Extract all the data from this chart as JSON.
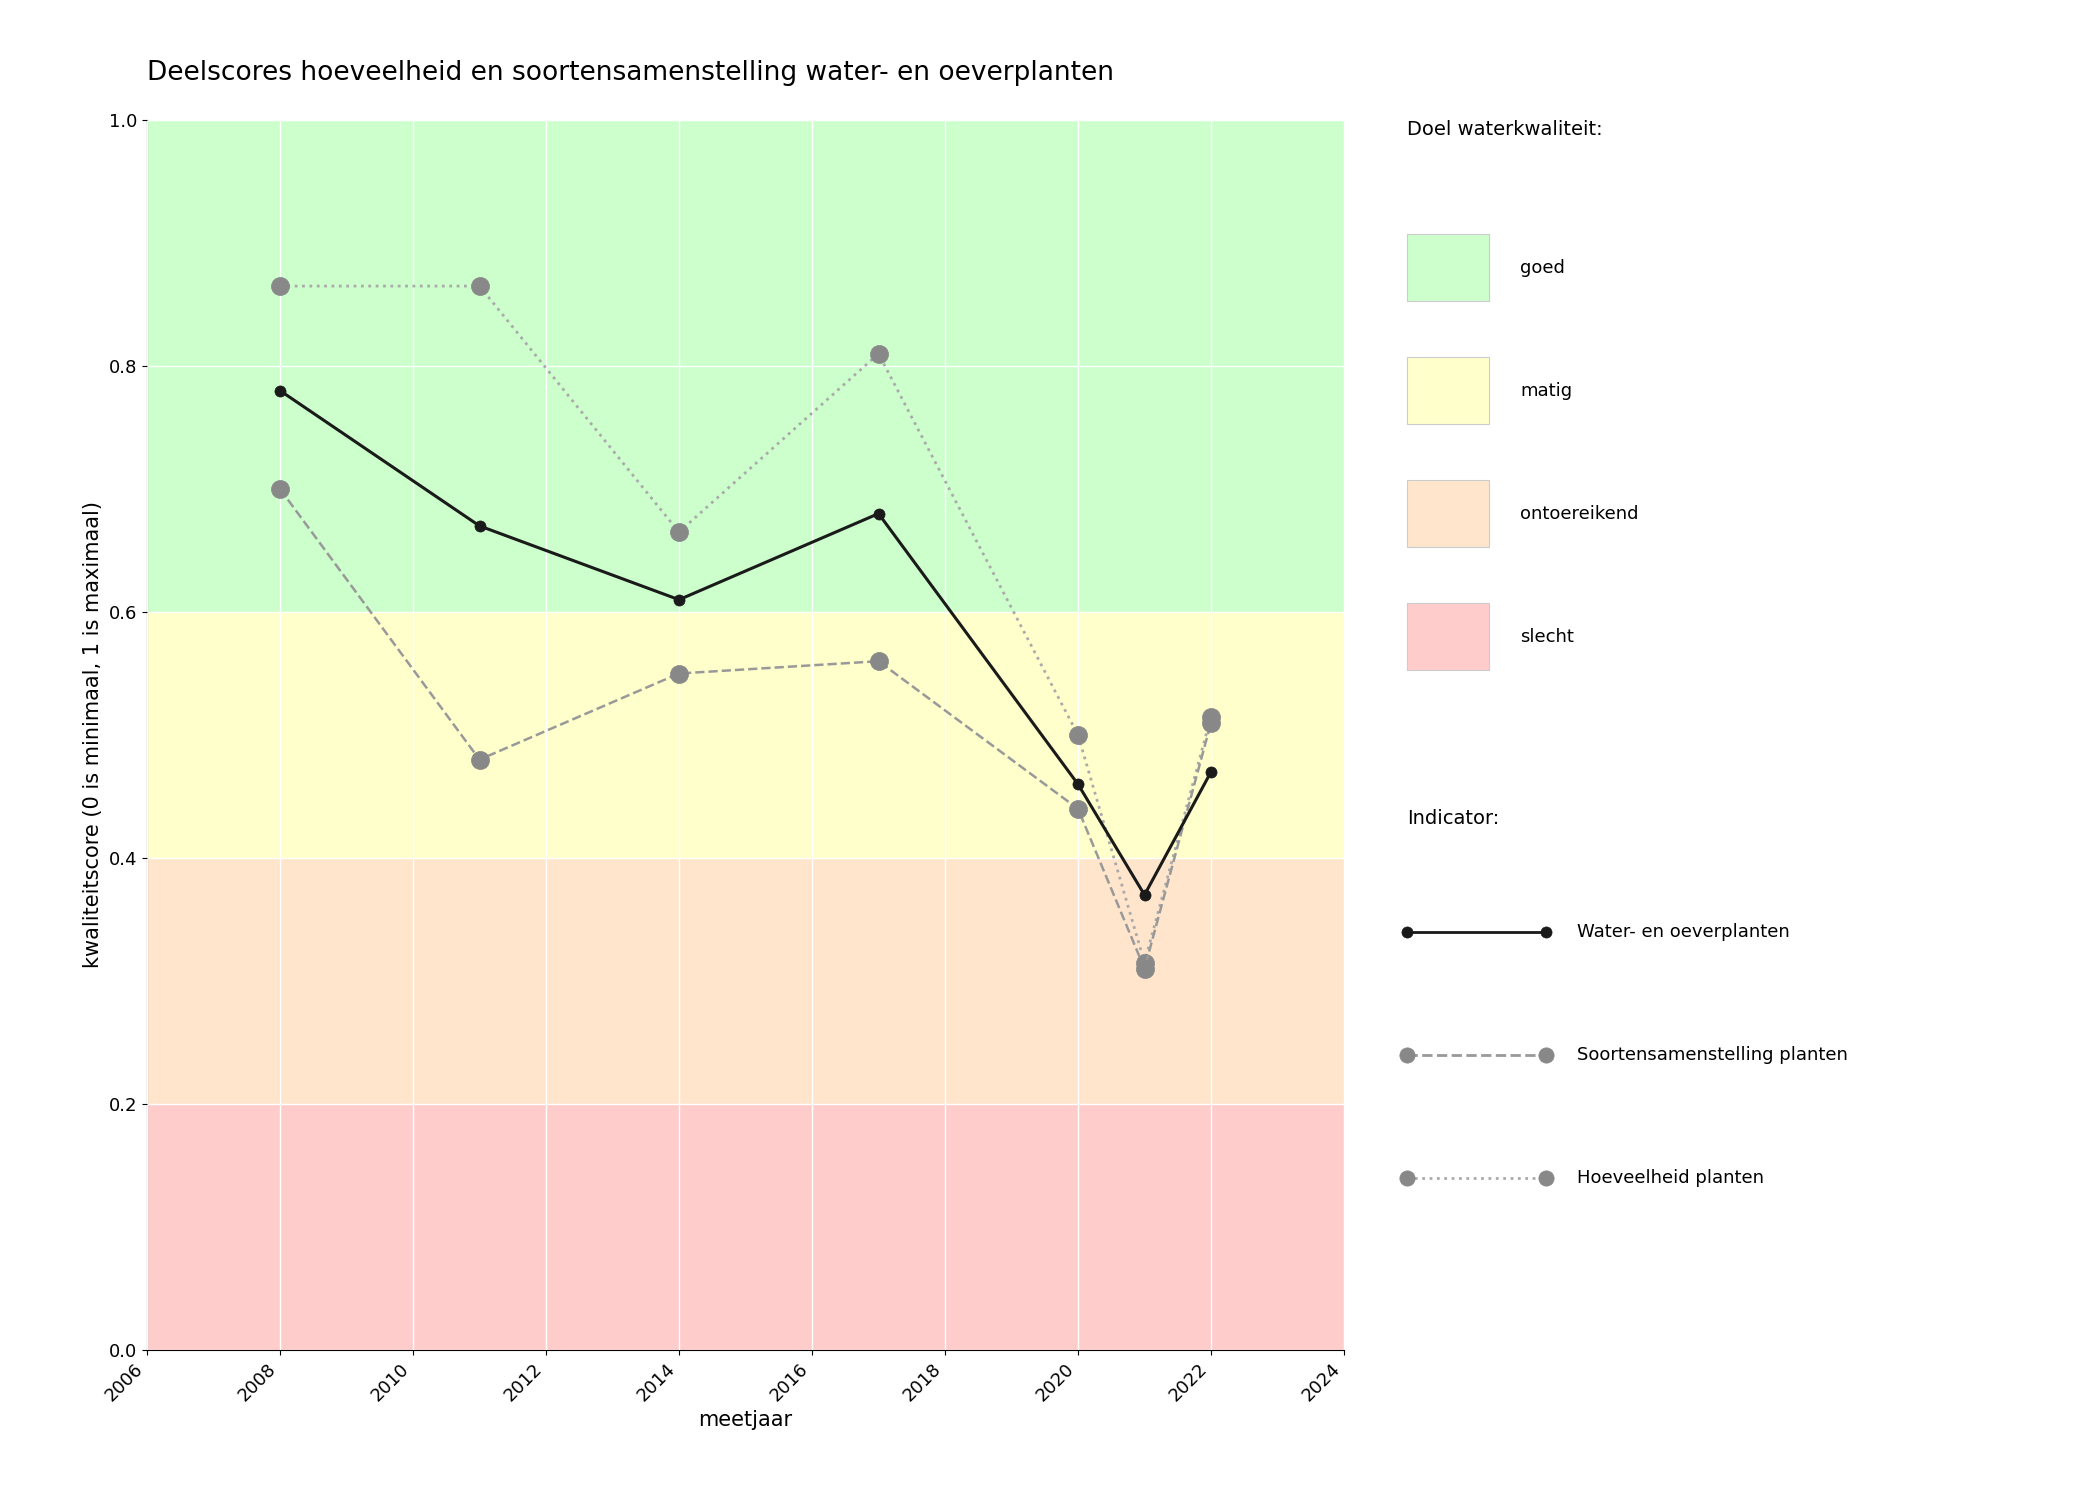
{
  "title": "Deelscores hoeveelheid en soortensamenstelling water- en oeverplanten",
  "xlabel": "meetjaar",
  "ylabel": "kwaliteitscore (0 is minimaal, 1 is maximaal)",
  "xlim": [
    2006,
    2024
  ],
  "ylim": [
    0.0,
    1.0
  ],
  "xticks": [
    2006,
    2008,
    2010,
    2012,
    2014,
    2016,
    2018,
    2020,
    2022,
    2024
  ],
  "yticks": [
    0.0,
    0.2,
    0.4,
    0.6,
    0.8,
    1.0
  ],
  "background_color": "#ffffff",
  "bg_bands": [
    {
      "ymin": 0.0,
      "ymax": 0.2,
      "color": "#ffcccc",
      "label": "slecht"
    },
    {
      "ymin": 0.2,
      "ymax": 0.4,
      "color": "#ffe5cc",
      "label": "ontoereikend"
    },
    {
      "ymin": 0.4,
      "ymax": 0.6,
      "color": "#ffffcc",
      "label": "matig"
    },
    {
      "ymin": 0.6,
      "ymax": 1.0,
      "color": "#ccffcc",
      "label": "goed"
    }
  ],
  "series": [
    {
      "name": "Water- en oeverplanten",
      "years": [
        2008,
        2011,
        2014,
        2017,
        2020,
        2021,
        2022
      ],
      "values": [
        0.78,
        0.67,
        0.61,
        0.68,
        0.46,
        0.37,
        0.47
      ],
      "color": "#1a1a1a",
      "linestyle": "solid",
      "linewidth": 2.2,
      "marker": "o",
      "markersize": 8,
      "markerfacecolor": "#1a1a1a",
      "markeredgecolor": "#1a1a1a",
      "zorder": 5
    },
    {
      "name": "Soortensamenstelling planten",
      "years": [
        2008,
        2011,
        2014,
        2017,
        2020,
        2021,
        2022
      ],
      "values": [
        0.7,
        0.48,
        0.55,
        0.56,
        0.44,
        0.31,
        0.51
      ],
      "color": "#999999",
      "linestyle": "dashed",
      "linewidth": 1.8,
      "marker": "o",
      "markersize": 13,
      "markerfacecolor": "#888888",
      "markeredgecolor": "#888888",
      "zorder": 4
    },
    {
      "name": "Hoeveelheid planten",
      "years": [
        2008,
        2011,
        2014,
        2017,
        2020,
        2021,
        2022
      ],
      "values": [
        0.865,
        0.865,
        0.665,
        0.81,
        0.5,
        0.315,
        0.515
      ],
      "color": "#aaaaaa",
      "linestyle": "dotted",
      "linewidth": 2.0,
      "marker": "o",
      "markersize": 13,
      "markerfacecolor": "#888888",
      "markeredgecolor": "#888888",
      "zorder": 3
    }
  ],
  "legend_doel_title": "Doel waterkwaliteit:",
  "legend_doel_items": [
    {
      "label": "goed",
      "color": "#ccffcc"
    },
    {
      "label": "matig",
      "color": "#ffffcc"
    },
    {
      "label": "ontoereikend",
      "color": "#ffe5cc"
    },
    {
      "label": "slecht",
      "color": "#ffcccc"
    }
  ],
  "legend_indicator_title": "Indicator:",
  "title_fontsize": 19,
  "axis_label_fontsize": 15,
  "tick_fontsize": 13,
  "legend_fontsize": 13,
  "legend_title_fontsize": 14
}
